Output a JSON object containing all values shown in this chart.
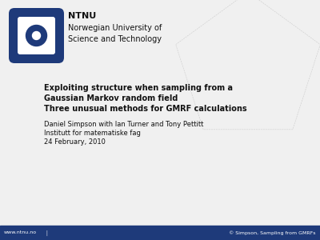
{
  "bg_color": "#f0f0f0",
  "footer_color": "#1e3a7a",
  "footer_left_text": "www.ntnu.no",
  "footer_right_text": "© Simpson, Sampling from GMRFs",
  "footer_text_color": "#ffffff",
  "footer_fontsize": 4.5,
  "logo_blue": "#1e3a7a",
  "logo_inner_color": "#ffffff",
  "ntnu_text": "NTNU",
  "ntnu_subtitle": "Norwegian University of\nScience and Technology",
  "ntnu_fontsize": 8.0,
  "ntnu_subtitle_fontsize": 7.0,
  "title_line1": "Exploiting structure when sampling from a",
  "title_line2": "Gaussian Markov random field",
  "subtitle_line": "Three unusual methods for GMRF calculations",
  "author_line": "Daniel Simpson with Ian Turner and Tony Pettitt",
  "institute_line": "Institutt for matematiske fag",
  "date_line": "24 February, 2010",
  "title_fontsize": 7.0,
  "subtitle_fontsize": 7.0,
  "author_fontsize": 6.0,
  "decoration_color": "#cccccc",
  "decoration_linewidth": 0.4,
  "text_color": "#111111"
}
